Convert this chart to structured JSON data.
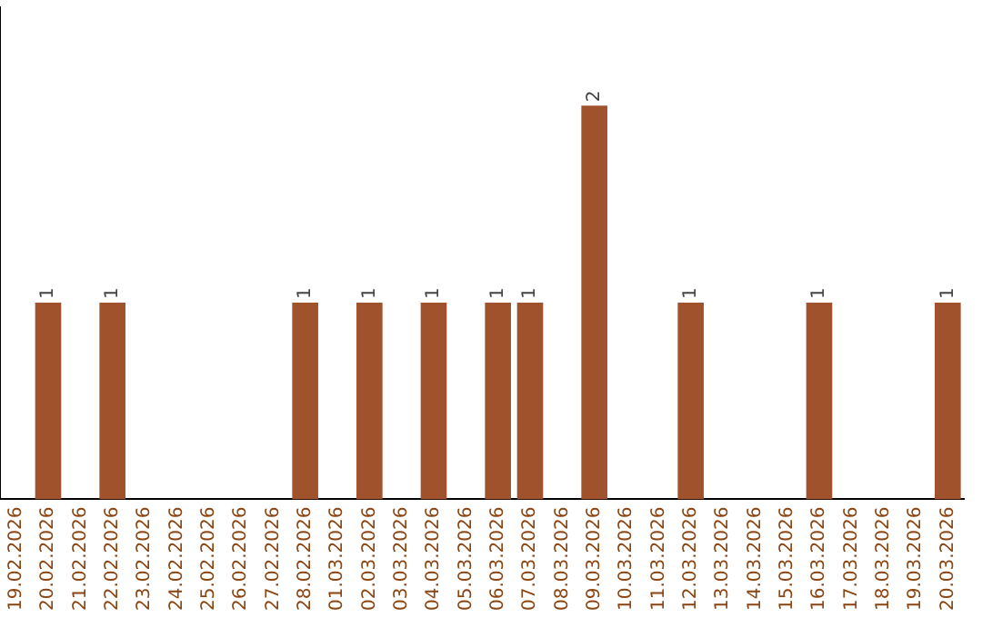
{
  "chart_data": {
    "type": "bar",
    "categories": [
      "19.02.2026",
      "20.02.2026",
      "21.02.2026",
      "22.02.2026",
      "23.02.2026",
      "24.02.2026",
      "25.02.2026",
      "26.02.2026",
      "27.02.2026",
      "28.02.2026",
      "01.03.2026",
      "02.03.2026",
      "03.03.2026",
      "04.03.2026",
      "05.03.2026",
      "06.03.2026",
      "07.03.2026",
      "08.03.2026",
      "09.03.2026",
      "10.03.2026",
      "11.03.2026",
      "12.03.2026",
      "13.03.2026",
      "14.03.2026",
      "15.03.2026",
      "16.03.2026",
      "17.03.2026",
      "18.03.2026",
      "19.03.2026",
      "20.03.2026"
    ],
    "values": [
      0,
      1,
      0,
      1,
      0,
      0,
      0,
      0,
      0,
      1,
      0,
      1,
      0,
      1,
      0,
      1,
      1,
      0,
      2,
      0,
      0,
      1,
      0,
      0,
      0,
      1,
      0,
      0,
      0,
      1
    ],
    "value_labels": [
      null,
      "1",
      null,
      "1",
      null,
      null,
      null,
      null,
      null,
      "1",
      null,
      "1",
      null,
      "1",
      null,
      "1",
      "1",
      null,
      "2",
      null,
      null,
      "1",
      null,
      null,
      null,
      "1",
      null,
      null,
      null,
      "1"
    ],
    "color": "#a0522d",
    "grid": false,
    "legend": false,
    "tick_labels": "x"
  }
}
